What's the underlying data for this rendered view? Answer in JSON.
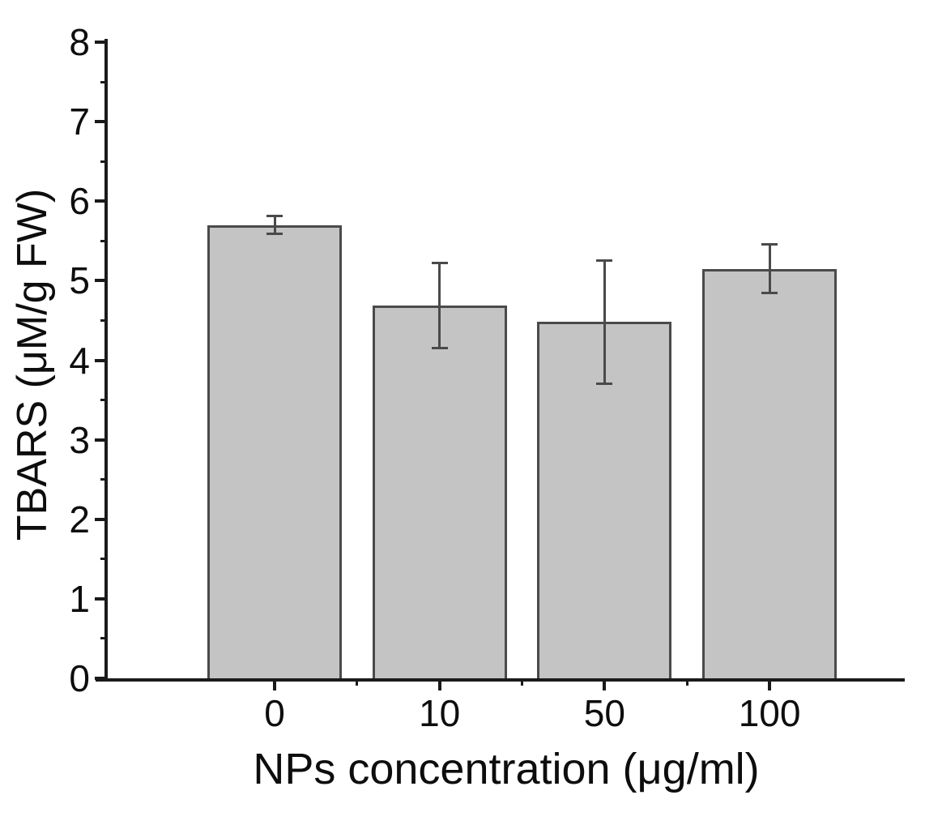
{
  "chart_data": {
    "type": "bar",
    "title": "",
    "xlabel": "NPs concentration (μg/ml)",
    "ylabel": "TBARS (μM/g FW)",
    "categories": [
      "0",
      "10",
      "50",
      "100"
    ],
    "values": [
      5.7,
      4.69,
      4.48,
      5.15
    ],
    "error_bars": [
      0.12,
      0.54,
      0.78,
      0.31
    ],
    "ylim": [
      0,
      8
    ],
    "y_major_ticks": [
      0,
      1,
      2,
      3,
      4,
      5,
      6,
      7,
      8
    ],
    "y_tick_labels": [
      "0",
      "1",
      "2",
      "3",
      "4",
      "5",
      "6",
      "7",
      "8"
    ],
    "y_minor_step": 0.5,
    "x_minor_ticks_between_categories": true,
    "grid": "off",
    "legend": "none",
    "colors": {
      "bar_fill": "#c4c4c4",
      "bar_border": "#4a4a4a",
      "error_bar": "#4a4a4a",
      "axis": "#1a1a1a",
      "text": "#0d0d0d",
      "background": "#ffffff"
    }
  }
}
